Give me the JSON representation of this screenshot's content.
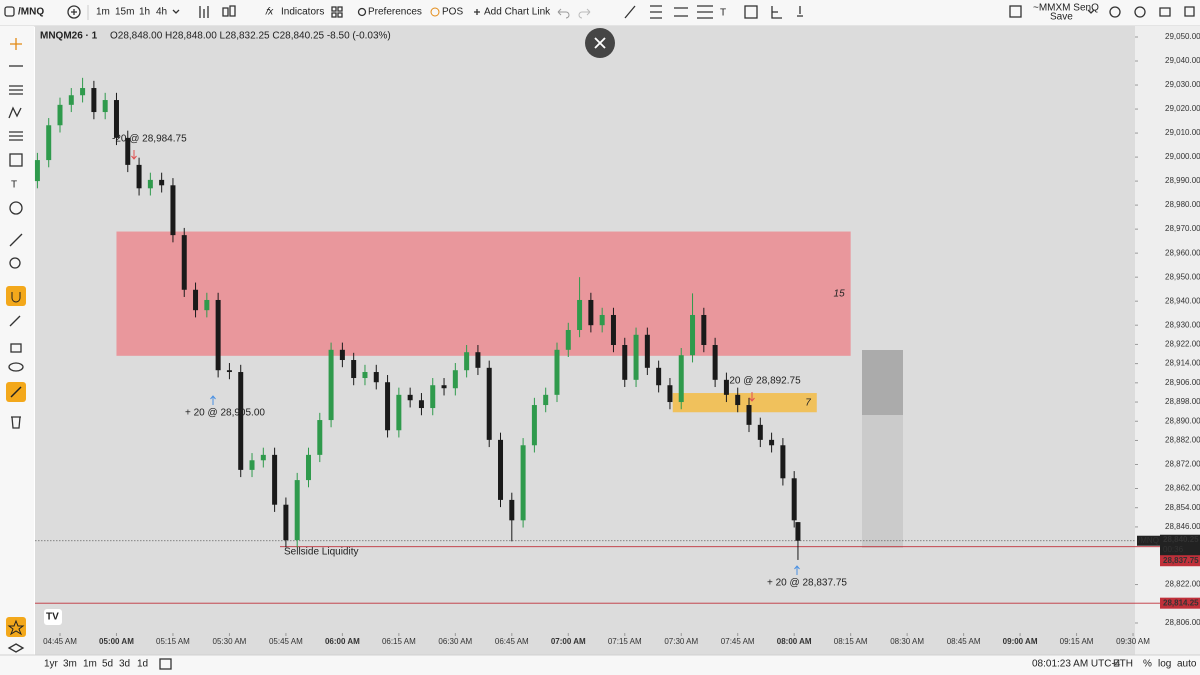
{
  "header": {
    "symbol": "/MNQ",
    "timeframes": [
      "1m",
      "15m",
      "1h",
      "4h"
    ],
    "indicators": "Indicators",
    "preferences": "Preferences",
    "pos": "POS",
    "add_link": "Add Chart Link",
    "account": "~MMXM SenQ",
    "save": "Save"
  },
  "legend": {
    "symbol": "MNQM26 · 1",
    "ohlc": "O28,848.00 H28,848.00 L28,832.25 C28,840.25 -8.50 (-0.03%)"
  },
  "footer": {
    "ranges": [
      "1yr",
      "3m",
      "1m",
      "5d",
      "3d",
      "1d"
    ],
    "clock": "08:01:23 AM UTC-4",
    "session": "ETH",
    "toggles": [
      "%",
      "log",
      "auto"
    ]
  },
  "chart_data": {
    "type": "candlestick",
    "up_color": "#2f9a4c",
    "down_color": "#1a1a1a",
    "x": [
      279,
      282,
      285,
      288,
      291,
      294,
      297,
      300,
      303,
      306,
      309,
      312,
      315,
      318,
      321,
      324,
      327,
      330,
      333,
      336,
      339,
      342,
      345,
      348,
      351,
      354,
      357,
      360,
      363,
      366,
      369,
      372,
      375,
      378,
      381,
      384,
      387,
      390,
      393,
      396,
      399,
      402,
      405,
      408,
      411,
      414,
      417,
      420,
      423,
      426,
      429,
      432,
      435,
      438,
      441,
      444,
      447,
      450,
      453,
      456,
      459,
      462,
      465,
      468,
      471,
      474,
      477,
      480,
      481
    ],
    "open": [
      28990,
      28998.75,
      29013.25,
      29021.75,
      29025.75,
      29028.75,
      29018.75,
      29023.75,
      29008,
      28996.75,
      28987,
      28990.5,
      28988.25,
      28967.5,
      28944.75,
      28936.25,
      28940.5,
      28911.25,
      28910.5,
      28869.75,
      28873.75,
      28876,
      28855.25,
      28840.5,
      28865.5,
      28876,
      28890.5,
      28919.75,
      28915.5,
      28908,
      28910.5,
      28906.25,
      28886.25,
      28901,
      28898.75,
      28895.5,
      28905,
      28903.75,
      28911.25,
      28918.75,
      28912.25,
      28882.25,
      28857.25,
      28848.75,
      28880,
      28896.75,
      28901,
      28919.75,
      28928,
      28940.5,
      28930,
      28934.25,
      28921.75,
      28907.25,
      28926,
      28912.25,
      28905,
      28898,
      28917.5,
      28934.25,
      28921.75,
      28907.25,
      28901,
      28896.75,
      28888.5,
      28882.25,
      28880,
      28866.25,
      28848
    ],
    "high": [
      29001.75,
      29016.25,
      29024.75,
      29028.75,
      29033,
      29031.75,
      29026.75,
      29026.75,
      29011,
      28999.75,
      28993.5,
      28993.5,
      28991.25,
      28970.5,
      28947.75,
      28943.5,
      28943.5,
      28914.25,
      28913.5,
      28876.75,
      28879,
      28879,
      28858.25,
      28868.5,
      28879,
      28893.5,
      28922.75,
      28922.75,
      28918.5,
      28913.5,
      28913.5,
      28909.25,
      28904,
      28904,
      28901.75,
      28908,
      28908,
      28914.25,
      28921.75,
      28921.75,
      28915.25,
      28885.25,
      28860.25,
      28883,
      28899.75,
      28904,
      28922.75,
      28931,
      28950,
      28943.5,
      28937.25,
      28937.25,
      28924.75,
      28929,
      28929,
      28915.25,
      28908,
      28920.5,
      28943.25,
      28937.25,
      28924.75,
      28910.25,
      28904,
      28899.75,
      28891.5,
      28885.25,
      28883,
      28869.25,
      28848
    ],
    "low": [
      28987,
      28995.75,
      29010.25,
      29018.75,
      29022.75,
      29015.75,
      29015.75,
      29005,
      28993.75,
      28984,
      28984,
      28985.25,
      28964.5,
      28941.75,
      28933.25,
      28933.25,
      28908.25,
      28907.5,
      28866.75,
      28866.75,
      28870.75,
      28852.25,
      28837.5,
      28837.5,
      28862.5,
      28873,
      28887.5,
      28912.5,
      28905,
      28905,
      28903.25,
      28883.25,
      28883.25,
      28895.75,
      28892.5,
      28892.5,
      28900.75,
      28900.75,
      28908.25,
      28909.25,
      28879.25,
      28854.25,
      28840,
      28845.75,
      28877,
      28893.75,
      28898,
      28916.75,
      28925,
      28927,
      28927,
      28918.75,
      28904.25,
      28904.25,
      28909.25,
      28902,
      28895,
      28895,
      28914.5,
      28918.75,
      28904.25,
      28898,
      28893.75,
      28885.5,
      28879.25,
      28877,
      28863.25,
      28845.75,
      28832.25
    ],
    "close": [
      28998.75,
      29013.25,
      29021.75,
      29025.75,
      29028.75,
      29018.75,
      29023.75,
      29008,
      28996.75,
      28987,
      28990.5,
      28988.25,
      28967.5,
      28944.75,
      28936.25,
      28940.5,
      28911.25,
      28910.5,
      28869.75,
      28873.75,
      28876,
      28855.25,
      28840.5,
      28865.5,
      28876,
      28890.5,
      28919.75,
      28915.5,
      28908,
      28910.5,
      28906.25,
      28886.25,
      28901,
      28898.75,
      28895.5,
      28905,
      28903.75,
      28911.25,
      28918.75,
      28912.25,
      28882.25,
      28857.25,
      28848.75,
      28880,
      28896.75,
      28901,
      28919.75,
      28928,
      28940.5,
      28930,
      28934.25,
      28921.75,
      28907.25,
      28926,
      28912.25,
      28905,
      28898,
      28917.5,
      28934.25,
      28921.75,
      28907.25,
      28901,
      28896.75,
      28888.5,
      28882.25,
      28880,
      28866.25,
      28848.75,
      28840.25
    ],
    "xlim": [
      278.36,
      570.52
    ],
    "ylim": [
      28801.83,
      29054.58
    ],
    "xticks": [
      {
        "value": 285,
        "label": "04:45 AM"
      },
      {
        "value": 300,
        "label": "05:00 AM"
      },
      {
        "value": 315,
        "label": "05:15 AM"
      },
      {
        "value": 330,
        "label": "05:30 AM"
      },
      {
        "value": 345,
        "label": "05:45 AM"
      },
      {
        "value": 360,
        "label": "06:00 AM"
      },
      {
        "value": 375,
        "label": "06:15 AM"
      },
      {
        "value": 390,
        "label": "06:30 AM"
      },
      {
        "value": 405,
        "label": "06:45 AM"
      },
      {
        "value": 420,
        "label": "07:00 AM"
      },
      {
        "value": 435,
        "label": "07:15 AM"
      },
      {
        "value": 450,
        "label": "07:30 AM"
      },
      {
        "value": 465,
        "label": "07:45 AM"
      },
      {
        "value": 480,
        "label": "08:00 AM"
      },
      {
        "value": 495,
        "label": "08:15 AM"
      },
      {
        "value": 510,
        "label": "08:30 AM"
      },
      {
        "value": 525,
        "label": "08:45 AM"
      },
      {
        "value": 540,
        "label": "09:00 AM"
      },
      {
        "value": 555,
        "label": "09:15 AM"
      },
      {
        "value": 570,
        "label": "09:30 AM"
      }
    ],
    "yticks": [
      {
        "value": 29050,
        "label": "29,050.00"
      },
      {
        "value": 29040,
        "label": "29,040.00"
      },
      {
        "value": 29030,
        "label": "29,030.00"
      },
      {
        "value": 29020,
        "label": "29,020.00"
      },
      {
        "value": 29010,
        "label": "29,010.00"
      },
      {
        "value": 29000,
        "label": "29,000.00"
      },
      {
        "value": 28990,
        "label": "28,990.00"
      },
      {
        "value": 28980,
        "label": "28,980.00"
      },
      {
        "value": 28970,
        "label": "28,970.00"
      },
      {
        "value": 28960,
        "label": "28,960.00"
      },
      {
        "value": 28950,
        "label": "28,950.00"
      },
      {
        "value": 28940,
        "label": "28,940.00"
      },
      {
        "value": 28930,
        "label": "28,930.00"
      },
      {
        "value": 28922,
        "label": "28,922.00"
      },
      {
        "value": 28914,
        "label": "28,914.00"
      },
      {
        "value": 28906,
        "label": "28,906.00"
      },
      {
        "value": 28898,
        "label": "28,898.00"
      },
      {
        "value": 28890,
        "label": "28,890.00"
      },
      {
        "value": 28882,
        "label": "28,882.00"
      },
      {
        "value": 28872,
        "label": "28,872.00"
      },
      {
        "value": 28862,
        "label": "28,862.00"
      },
      {
        "value": 28854,
        "label": "28,854.00"
      },
      {
        "value": 28846,
        "label": "28,846.00"
      },
      {
        "value": 28822,
        "label": "28,822.00"
      },
      {
        "value": 28806,
        "label": "28,806.00"
      }
    ],
    "zones": [
      {
        "label": "15",
        "xmin": 300,
        "xmax": 495,
        "ymin": 28917.25,
        "ymax": 28969,
        "color": "#e9979c"
      },
      {
        "label": "7",
        "xmin": 447.75,
        "xmax": 486,
        "ymin": 28893.75,
        "ymax": 28901.75,
        "color": "#f0c15c"
      }
    ],
    "hlines": [
      {
        "value": 28837.75,
        "label": "28,837.75",
        "text": "Sellside Liquidity",
        "color": "#c0303a"
      },
      {
        "value": 28814.25,
        "label": "28,814.25",
        "color": "#c0303a"
      }
    ],
    "last_price": {
      "symbol": "/MNQ",
      "label": "28,840.25",
      "countdown": "00:36"
    },
    "trades": [
      {
        "text": "-20 @ 28,984.75",
        "side": "sell"
      },
      {
        "text": "+ 20 @ 28,905.00",
        "side": "buy"
      },
      {
        "text": "-20 @ 28,892.75",
        "side": "sell"
      },
      {
        "text": "+ 20 @ 28,837.75",
        "side": "buy"
      }
    ]
  }
}
